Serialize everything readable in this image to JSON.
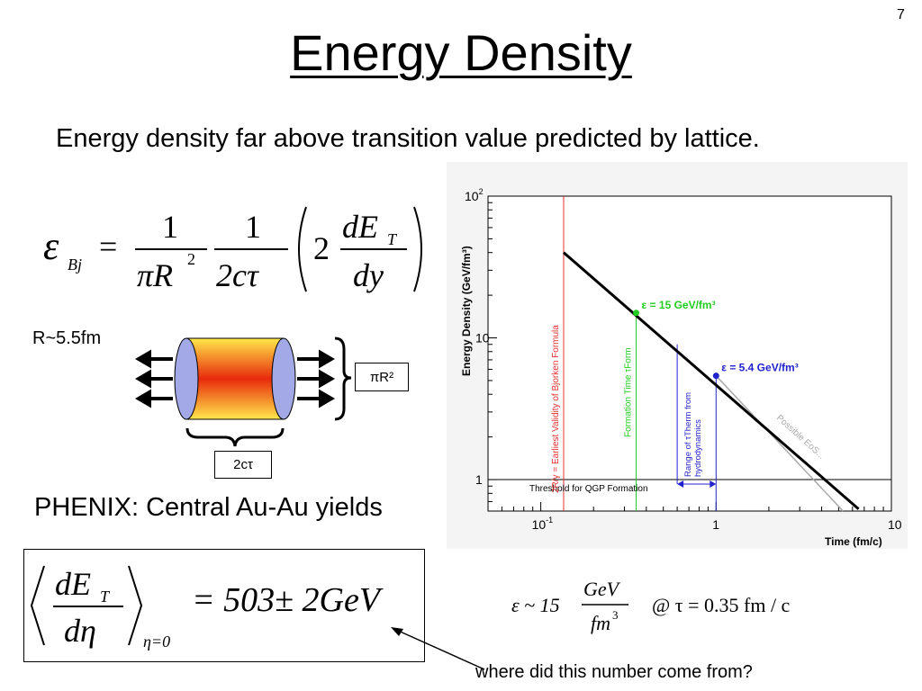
{
  "slide": {
    "number": "7",
    "title": "Energy Density",
    "subtitle": "Energy density far above transition value predicted by lattice.",
    "r_label": "R~5.5fm",
    "pi_r2_label": "πR²",
    "two_ctau_label": "2cτ",
    "phenix_text": "PHENIX:  Central Au-Au yields",
    "question_text": "where did this number come from?"
  },
  "equations": {
    "bjorken": {
      "epsilon": "ε",
      "sub": "Bj",
      "equals": "=",
      "one_a": "1",
      "pi_r2": "πR",
      "sup2": "2",
      "one_b": "1",
      "two_ctau": "2cτ",
      "two": "2",
      "de": "dE",
      "sub_t": "T",
      "dy": "dy"
    },
    "det_deta": {
      "de": "dE",
      "sub_t": "T",
      "deta": "dη",
      "cond": "η=0",
      "result": "= 503± 2GeV"
    },
    "epsilon_estimate": {
      "lhs": "ε ~ 15",
      "gev": "GeV",
      "fm": "fm",
      "sup3": "3",
      "at": "@ τ = 0.35 fm / c"
    }
  },
  "colors": {
    "arrow": "#000000",
    "cap_fill": "#a3a8e6",
    "cylinder_edge": "#ffe84a",
    "cylinder_center": "#e82a0c",
    "curve": "#000000",
    "red_line": "#e83030",
    "green_line": "#22cc22",
    "blue_line": "#2222cc",
    "gray_line": "#aaaaaa"
  },
  "chart_data": {
    "type": "line",
    "xlabel": "Time (fm/c)",
    "ylabel": "Energy Density (GeV/fm³)",
    "xscale": "log",
    "yscale": "log",
    "xlim": [
      0.05,
      10
    ],
    "ylim": [
      0.6,
      100
    ],
    "x_ticks": [
      {
        "value": 0.1,
        "base": "10",
        "exp": "-1"
      },
      {
        "value": 1,
        "base": "1",
        "exp": ""
      },
      {
        "value": 10,
        "base": "10",
        "exp": ""
      }
    ],
    "y_ticks": [
      {
        "value": 1,
        "base": "1",
        "exp": ""
      },
      {
        "value": 10,
        "base": "10",
        "exp": ""
      },
      {
        "value": 100,
        "base": "10",
        "exp": "2"
      }
    ],
    "grid": false,
    "curve": {
      "x": [
        0.135,
        6.5
      ],
      "y": [
        40,
        0.62
      ]
    },
    "possible_eos_curve": {
      "x": [
        1.0,
        5.3
      ],
      "y": [
        5.4,
        0.6
      ]
    },
    "bjorken_validity": {
      "x": 0.135,
      "label": "2R/γ = Earliest Validity of Bjorken Formula"
    },
    "formation_time": {
      "x": 0.35,
      "label": "Formation Time τForm"
    },
    "hydro_range": {
      "x": [
        0.6,
        1.0
      ],
      "label1": "Range of τTherm from",
      "label2": "hydrodynamics"
    },
    "threshold": {
      "y": 1,
      "label": "Threshold for QGP Formation"
    },
    "possible_eos_label": "Possible EoS...",
    "annotations": [
      {
        "x": 0.35,
        "y": 15,
        "label": "ε = 15 GeV/fm³"
      },
      {
        "x": 1.0,
        "y": 5.4,
        "label": "ε = 5.4 GeV/fm³"
      }
    ]
  }
}
